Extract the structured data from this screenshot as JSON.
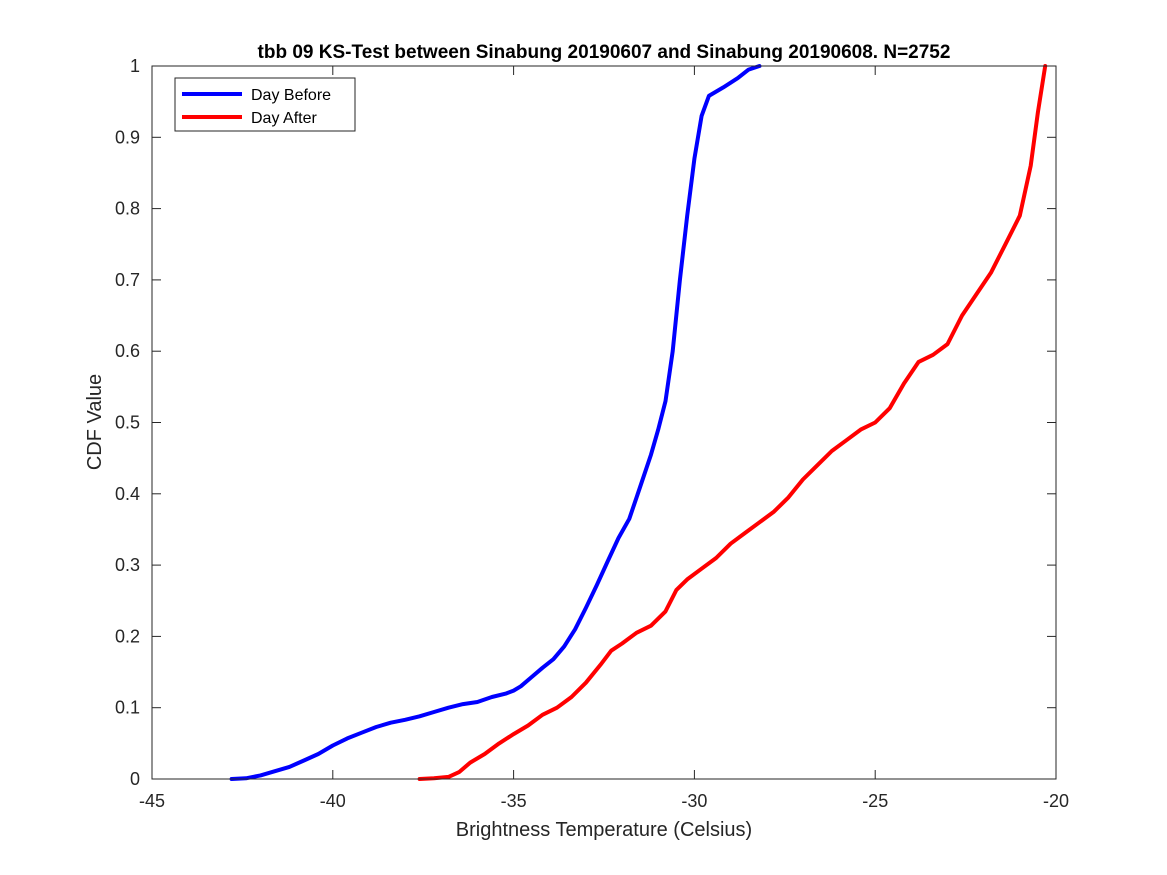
{
  "chart_data": {
    "type": "line",
    "title": "tbb 09 KS-Test between Sinabung 20190607 and Sinabung 20190608. N=2752",
    "xlabel": "Brightness Temperature (Celsius)",
    "ylabel": "CDF Value",
    "xlim": [
      -45,
      -20
    ],
    "ylim": [
      0,
      1
    ],
    "xticks": [
      -45,
      -40,
      -35,
      -30,
      -25,
      -20
    ],
    "xtick_labels": [
      "-45",
      "-40",
      "-35",
      "-30",
      "-25",
      "-20"
    ],
    "yticks": [
      0,
      0.1,
      0.2,
      0.3,
      0.4,
      0.5,
      0.6,
      0.7,
      0.8,
      0.9,
      1
    ],
    "ytick_labels": [
      "0",
      "0.1",
      "0.2",
      "0.3",
      "0.4",
      "0.5",
      "0.6",
      "0.7",
      "0.8",
      "0.9",
      "1"
    ],
    "grid": false,
    "legend_position": "top-left",
    "series": [
      {
        "name": "Day Before",
        "color": "#0000ff",
        "points": [
          [
            -42.8,
            0.0
          ],
          [
            -42.4,
            0.001
          ],
          [
            -42.0,
            0.005
          ],
          [
            -41.6,
            0.011
          ],
          [
            -41.2,
            0.017
          ],
          [
            -40.8,
            0.026
          ],
          [
            -40.4,
            0.035
          ],
          [
            -40.0,
            0.047
          ],
          [
            -39.6,
            0.057
          ],
          [
            -39.2,
            0.065
          ],
          [
            -38.8,
            0.073
          ],
          [
            -38.4,
            0.079
          ],
          [
            -38.0,
            0.083
          ],
          [
            -37.6,
            0.088
          ],
          [
            -37.2,
            0.094
          ],
          [
            -36.8,
            0.1
          ],
          [
            -36.4,
            0.105
          ],
          [
            -36.0,
            0.108
          ],
          [
            -35.6,
            0.115
          ],
          [
            -35.2,
            0.12
          ],
          [
            -35.0,
            0.124
          ],
          [
            -34.8,
            0.13
          ],
          [
            -34.5,
            0.143
          ],
          [
            -34.2,
            0.156
          ],
          [
            -33.9,
            0.168
          ],
          [
            -33.6,
            0.186
          ],
          [
            -33.3,
            0.21
          ],
          [
            -33.0,
            0.24
          ],
          [
            -32.7,
            0.272
          ],
          [
            -32.4,
            0.305
          ],
          [
            -32.1,
            0.338
          ],
          [
            -31.8,
            0.365
          ],
          [
            -31.5,
            0.41
          ],
          [
            -31.2,
            0.455
          ],
          [
            -31.0,
            0.49
          ],
          [
            -30.8,
            0.53
          ],
          [
            -30.6,
            0.6
          ],
          [
            -30.4,
            0.7
          ],
          [
            -30.2,
            0.79
          ],
          [
            -30.0,
            0.87
          ],
          [
            -29.8,
            0.93
          ],
          [
            -29.6,
            0.958
          ],
          [
            -29.2,
            0.97
          ],
          [
            -28.8,
            0.983
          ],
          [
            -28.5,
            0.995
          ],
          [
            -28.2,
            1.0
          ]
        ]
      },
      {
        "name": "Day After",
        "color": "#ff0000",
        "points": [
          [
            -37.6,
            0.0
          ],
          [
            -37.2,
            0.001
          ],
          [
            -36.8,
            0.003
          ],
          [
            -36.5,
            0.01
          ],
          [
            -36.2,
            0.023
          ],
          [
            -35.8,
            0.035
          ],
          [
            -35.4,
            0.05
          ],
          [
            -35.0,
            0.063
          ],
          [
            -34.6,
            0.075
          ],
          [
            -34.2,
            0.09
          ],
          [
            -33.8,
            0.1
          ],
          [
            -33.4,
            0.115
          ],
          [
            -33.0,
            0.135
          ],
          [
            -32.6,
            0.16
          ],
          [
            -32.3,
            0.18
          ],
          [
            -32.0,
            0.19
          ],
          [
            -31.6,
            0.205
          ],
          [
            -31.2,
            0.215
          ],
          [
            -30.8,
            0.235
          ],
          [
            -30.5,
            0.265
          ],
          [
            -30.2,
            0.28
          ],
          [
            -29.8,
            0.295
          ],
          [
            -29.4,
            0.31
          ],
          [
            -29.0,
            0.33
          ],
          [
            -28.6,
            0.345
          ],
          [
            -28.2,
            0.36
          ],
          [
            -27.8,
            0.375
          ],
          [
            -27.4,
            0.395
          ],
          [
            -27.0,
            0.42
          ],
          [
            -26.6,
            0.44
          ],
          [
            -26.2,
            0.46
          ],
          [
            -25.8,
            0.475
          ],
          [
            -25.4,
            0.49
          ],
          [
            -25.0,
            0.5
          ],
          [
            -24.6,
            0.52
          ],
          [
            -24.2,
            0.555
          ],
          [
            -23.8,
            0.585
          ],
          [
            -23.4,
            0.595
          ],
          [
            -23.0,
            0.61
          ],
          [
            -22.6,
            0.65
          ],
          [
            -22.2,
            0.68
          ],
          [
            -21.8,
            0.71
          ],
          [
            -21.4,
            0.75
          ],
          [
            -21.0,
            0.79
          ],
          [
            -20.7,
            0.86
          ],
          [
            -20.5,
            0.935
          ],
          [
            -20.3,
            1.0
          ]
        ]
      }
    ]
  }
}
